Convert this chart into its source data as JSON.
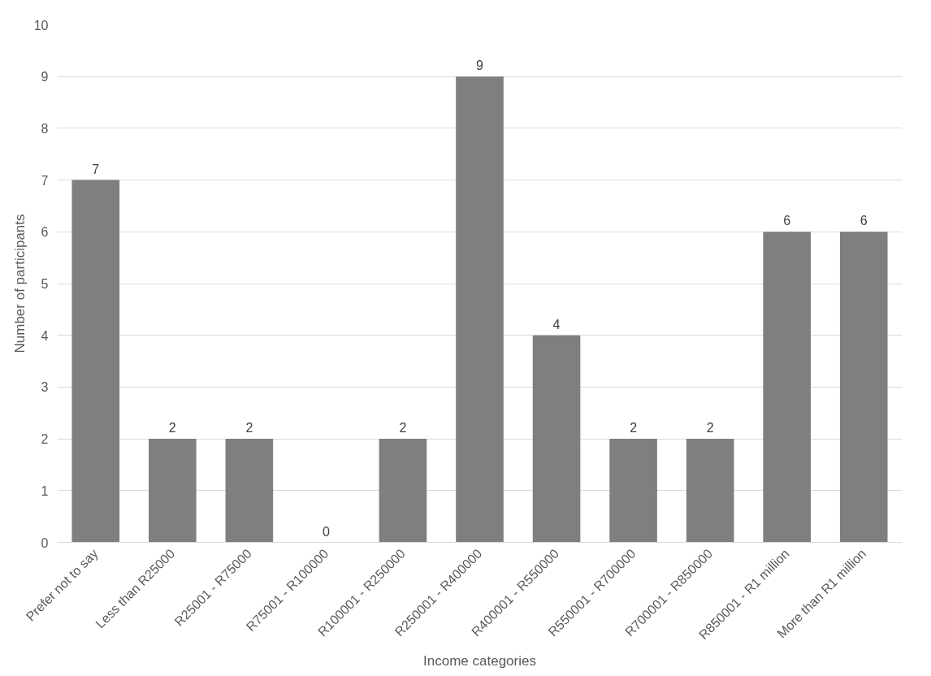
{
  "chart_data": {
    "type": "bar",
    "xlabel": "Income categories",
    "ylabel": "Number of participants",
    "categories": [
      "Prefer not to say",
      "Less than R25000",
      "R25001 - R75000",
      "R75001 - R100000",
      "R100001 - R250000",
      "R250001 - R400000",
      "R400001 - R550000",
      "R550001 - R700000",
      "R700001 - R850000",
      "R850001 - R1 million",
      "More than R1 million"
    ],
    "values": [
      7,
      2,
      2,
      0,
      2,
      9,
      4,
      2,
      2,
      6,
      6
    ],
    "color": "#7f7f7f",
    "ylim": [
      0,
      10
    ],
    "yticks": [
      0,
      1,
      2,
      3,
      4,
      5,
      6,
      7,
      8,
      9,
      10
    ],
    "grid": "y",
    "data_labels": true
  }
}
